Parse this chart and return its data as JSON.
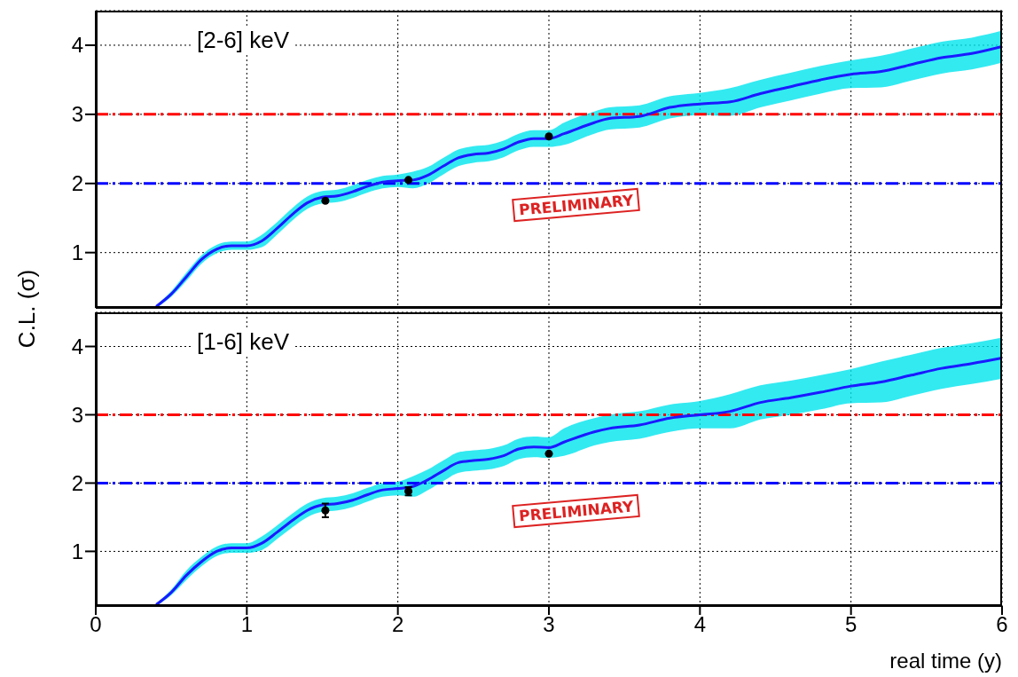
{
  "chart_data": [
    {
      "type": "line",
      "ylabel": "C.L. (σ)",
      "annotations": [
        "[2-6] keV",
        "PRELIMINARY"
      ],
      "xlim": [
        0,
        6
      ],
      "xticks": [
        0,
        1,
        2,
        3,
        4,
        5,
        6
      ],
      "ylim": [
        0.2,
        4.5
      ],
      "yticks": [
        1,
        2,
        3,
        4
      ],
      "grid": true,
      "tick_labels": "y",
      "ref_lines": [
        {
          "axis": "y",
          "value": 3,
          "color": "#ff0000",
          "line_style": "dashed"
        },
        {
          "axis": "y",
          "value": 2,
          "color": "#0000ff",
          "line_style": "dashed"
        }
      ],
      "series": [
        {
          "color": "#1a1aff",
          "marker": "none",
          "x": [
            0.4,
            0.5,
            0.6,
            0.7,
            0.8,
            0.9,
            1.0,
            1.1,
            1.2,
            1.3,
            1.4,
            1.5,
            1.6,
            1.7,
            1.8,
            1.9,
            2.0,
            2.1,
            2.2,
            2.3,
            2.4,
            2.5,
            2.6,
            2.7,
            2.8,
            2.9,
            3.0,
            3.1,
            3.3,
            3.4,
            3.6,
            3.8,
            4.0,
            4.2,
            4.4,
            4.6,
            4.8,
            5.0,
            5.2,
            5.4,
            5.6,
            5.8,
            6.0
          ],
          "values": [
            0.22,
            0.4,
            0.65,
            0.9,
            1.05,
            1.1,
            1.1,
            1.17,
            1.35,
            1.55,
            1.72,
            1.8,
            1.82,
            1.88,
            1.96,
            2.02,
            2.04,
            2.05,
            2.12,
            2.25,
            2.37,
            2.42,
            2.44,
            2.5,
            2.6,
            2.65,
            2.65,
            2.72,
            2.88,
            2.94,
            2.97,
            3.1,
            3.15,
            3.18,
            3.3,
            3.4,
            3.5,
            3.58,
            3.62,
            3.72,
            3.82,
            3.88,
            3.98
          ],
          "lower": [
            0.2,
            0.36,
            0.59,
            0.84,
            0.99,
            1.04,
            1.04,
            1.08,
            1.26,
            1.46,
            1.63,
            1.71,
            1.73,
            1.79,
            1.87,
            1.93,
            1.95,
            1.93,
            2.0,
            2.13,
            2.25,
            2.3,
            2.32,
            2.38,
            2.48,
            2.53,
            2.53,
            2.56,
            2.72,
            2.78,
            2.81,
            2.94,
            2.99,
            2.98,
            3.1,
            3.2,
            3.3,
            3.38,
            3.39,
            3.49,
            3.59,
            3.65,
            3.75
          ],
          "upper": [
            0.24,
            0.44,
            0.71,
            0.96,
            1.11,
            1.16,
            1.16,
            1.26,
            1.44,
            1.64,
            1.81,
            1.89,
            1.91,
            1.97,
            2.05,
            2.11,
            2.13,
            2.17,
            2.24,
            2.37,
            2.49,
            2.54,
            2.56,
            2.62,
            2.72,
            2.77,
            2.77,
            2.88,
            3.04,
            3.1,
            3.13,
            3.26,
            3.31,
            3.38,
            3.5,
            3.6,
            3.7,
            3.78,
            3.85,
            3.95,
            4.05,
            4.11,
            4.21
          ]
        },
        {
          "type": "scatter",
          "color": "#000000",
          "marker": "circle",
          "x": [
            1.52,
            2.07,
            3.0
          ],
          "values": [
            1.75,
            2.05,
            2.68
          ]
        }
      ]
    },
    {
      "type": "line",
      "xlabel": "real time (y)",
      "annotations": [
        "[1-6] keV",
        "PRELIMINARY"
      ],
      "xlim": [
        0,
        6
      ],
      "xticks": [
        0,
        1,
        2,
        3,
        4,
        5,
        6
      ],
      "ylim": [
        0.2,
        4.5
      ],
      "yticks": [
        1,
        2,
        3,
        4
      ],
      "grid": true,
      "ref_lines": [
        {
          "axis": "y",
          "value": 3,
          "color": "#ff0000",
          "line_style": "dashed"
        },
        {
          "axis": "y",
          "value": 2,
          "color": "#0000ff",
          "line_style": "dashed"
        }
      ],
      "series": [
        {
          "color": "#1a1aff",
          "marker": "none",
          "x": [
            0.4,
            0.5,
            0.6,
            0.7,
            0.8,
            0.9,
            1.0,
            1.1,
            1.2,
            1.3,
            1.4,
            1.5,
            1.6,
            1.7,
            1.8,
            1.9,
            2.0,
            2.1,
            2.2,
            2.3,
            2.4,
            2.5,
            2.6,
            2.7,
            2.8,
            2.9,
            3.0,
            3.1,
            3.3,
            3.4,
            3.6,
            3.8,
            4.0,
            4.2,
            4.4,
            4.6,
            4.8,
            5.0,
            5.2,
            5.4,
            5.6,
            5.8,
            6.0
          ],
          "values": [
            0.22,
            0.4,
            0.65,
            0.85,
            1.0,
            1.05,
            1.05,
            1.12,
            1.28,
            1.45,
            1.6,
            1.68,
            1.7,
            1.75,
            1.83,
            1.9,
            1.92,
            1.95,
            2.05,
            2.18,
            2.3,
            2.33,
            2.35,
            2.4,
            2.5,
            2.53,
            2.52,
            2.6,
            2.75,
            2.8,
            2.85,
            2.95,
            3.0,
            3.05,
            3.18,
            3.25,
            3.33,
            3.42,
            3.48,
            3.58,
            3.68,
            3.75,
            3.83
          ],
          "lower": [
            0.2,
            0.36,
            0.58,
            0.78,
            0.93,
            0.98,
            0.98,
            1.02,
            1.18,
            1.35,
            1.5,
            1.58,
            1.6,
            1.65,
            1.73,
            1.8,
            1.82,
            1.8,
            1.9,
            2.03,
            2.15,
            2.18,
            2.2,
            2.25,
            2.35,
            2.38,
            2.37,
            2.4,
            2.55,
            2.6,
            2.65,
            2.75,
            2.8,
            2.8,
            2.93,
            3.0,
            3.08,
            3.17,
            3.18,
            3.28,
            3.38,
            3.45,
            3.53
          ],
          "upper": [
            0.24,
            0.44,
            0.72,
            0.92,
            1.07,
            1.12,
            1.12,
            1.22,
            1.38,
            1.55,
            1.7,
            1.78,
            1.8,
            1.85,
            1.93,
            2.0,
            2.02,
            2.1,
            2.2,
            2.33,
            2.45,
            2.48,
            2.5,
            2.55,
            2.65,
            2.68,
            2.67,
            2.8,
            2.95,
            3.0,
            3.05,
            3.15,
            3.2,
            3.3,
            3.43,
            3.5,
            3.58,
            3.67,
            3.78,
            3.88,
            3.98,
            4.05,
            4.13
          ]
        },
        {
          "type": "scatter",
          "color": "#000000",
          "marker": "circle",
          "x": [
            1.52,
            2.07,
            3.0
          ],
          "values": [
            1.6,
            1.88,
            2.43
          ],
          "errors": [
            0.1,
            0.06,
            null
          ]
        }
      ]
    }
  ]
}
